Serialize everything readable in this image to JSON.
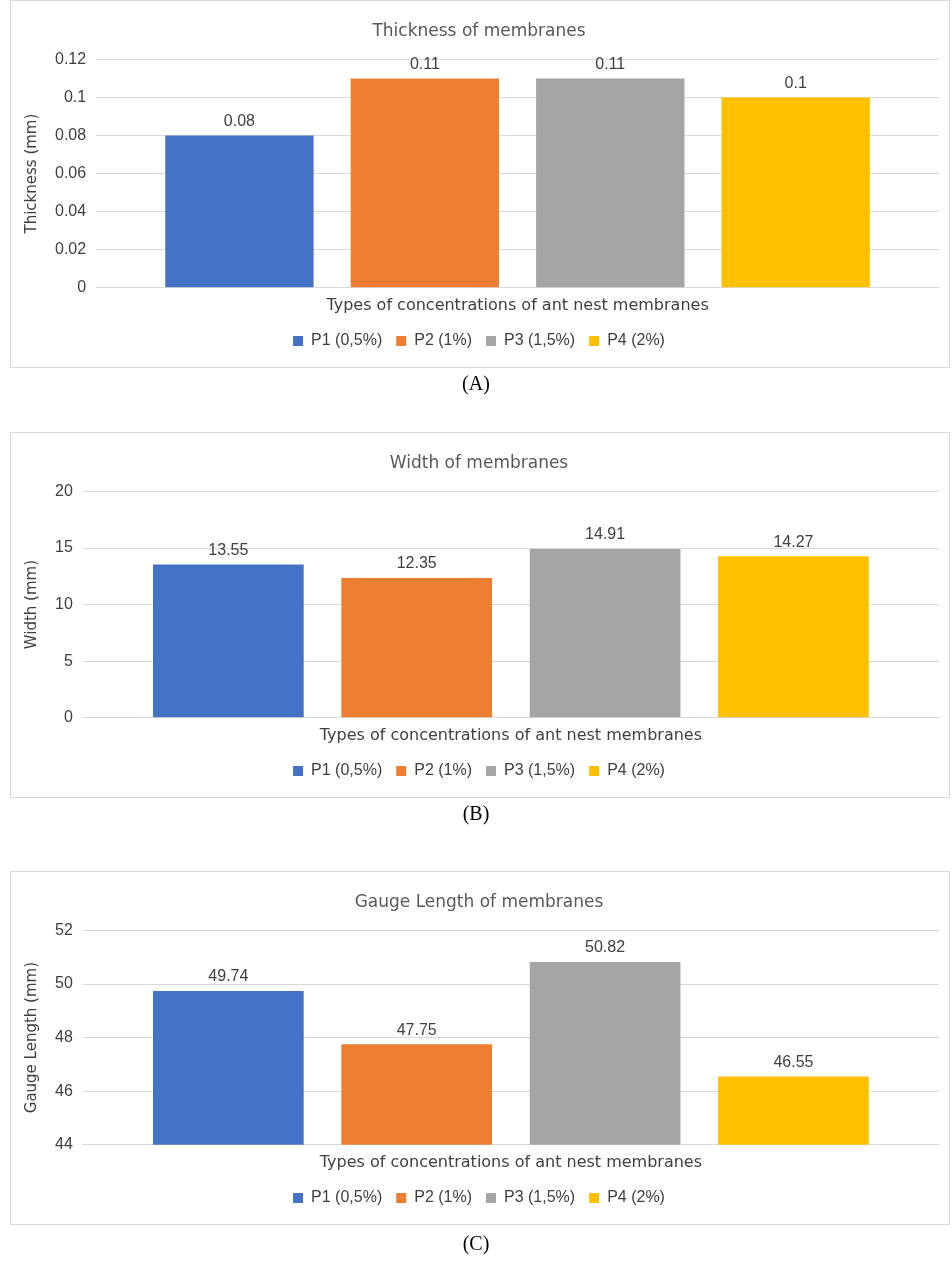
{
  "chart_data": [
    {
      "type": "bar",
      "title": "Thickness of membranes",
      "xlabel": "Types of concentrations of ant nest membranes",
      "ylabel": "Thickness (mm)",
      "categories": [
        null
      ],
      "series": [
        {
          "name": "P1 (0,5%)",
          "color": "#4472c4",
          "values": [
            0.08
          ]
        },
        {
          "name": "P2 (1%)",
          "color": "#ed7d31",
          "values": [
            0.11
          ]
        },
        {
          "name": "P3 (1,5%)",
          "color": "#a5a5a5",
          "values": [
            0.11
          ]
        },
        {
          "name": "P4 (2%)",
          "color": "#ffc000",
          "values": [
            0.1
          ]
        }
      ],
      "ylim": [
        0,
        0.12
      ],
      "yticks": [
        0,
        0.02,
        0.04,
        0.06,
        0.08,
        0.1,
        0.12
      ],
      "grid": "y",
      "legend": "bottom",
      "data_labels": true,
      "annotations": [
        "(A)"
      ]
    },
    {
      "type": "bar",
      "title": "Width of membranes",
      "xlabel": "Types of concentrations of ant nest membranes",
      "ylabel": "Width (mm)",
      "categories": [
        null
      ],
      "series": [
        {
          "name": "P1 (0,5%)",
          "color": "#4472c4",
          "values": [
            13.55
          ]
        },
        {
          "name": "P2 (1%)",
          "color": "#ed7d31",
          "values": [
            12.35
          ]
        },
        {
          "name": "P3 (1,5%)",
          "color": "#a5a5a5",
          "values": [
            14.91
          ]
        },
        {
          "name": "P4 (2%)",
          "color": "#ffc000",
          "values": [
            14.27
          ]
        }
      ],
      "ylim": [
        0,
        20
      ],
      "yticks": [
        0,
        5,
        10,
        15,
        20
      ],
      "grid": "y",
      "legend": "bottom",
      "data_labels": true,
      "annotations": [
        "(B)"
      ]
    },
    {
      "type": "bar",
      "title": "Gauge Length of membranes",
      "xlabel": "Types of concentrations of ant nest membranes",
      "ylabel": "Gauge Length (mm)",
      "categories": [
        null
      ],
      "series": [
        {
          "name": "P1 (0,5%)",
          "color": "#4472c4",
          "values": [
            49.74
          ]
        },
        {
          "name": "P2 (1%)",
          "color": "#ed7d31",
          "values": [
            47.75
          ]
        },
        {
          "name": "P3 (1,5%)",
          "color": "#a5a5a5",
          "values": [
            50.82
          ]
        },
        {
          "name": "P4 (2%)",
          "color": "#ffc000",
          "values": [
            46.55
          ]
        }
      ],
      "ylim": [
        44,
        52
      ],
      "yticks": [
        44,
        46,
        48,
        50,
        52
      ],
      "grid": "y",
      "legend": "bottom",
      "data_labels": true,
      "annotations": [
        "(C)"
      ]
    }
  ]
}
